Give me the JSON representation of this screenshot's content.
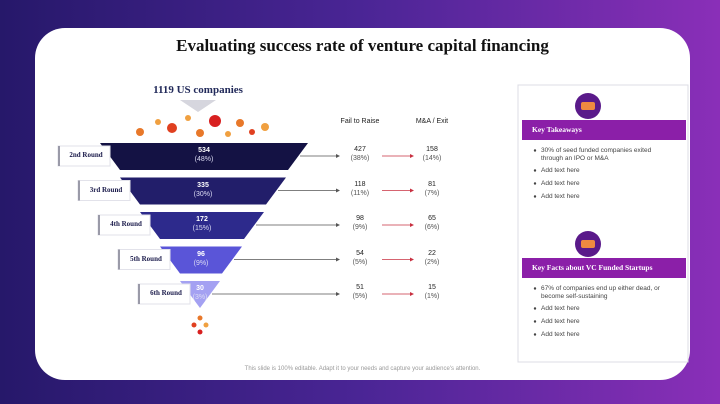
{
  "title": "Evaluating success rate of venture capital financing",
  "top_label": "1119 US companies",
  "columns": [
    "Fail to Raise",
    "M&A / Exit"
  ],
  "rounds": [
    {
      "label": "2nd Round",
      "count": "534",
      "count_pct": "(48%)",
      "fail": "427",
      "fail_pct": "(38%)",
      "exit": "158",
      "exit_pct": "(14%)"
    },
    {
      "label": "3rd Round",
      "count": "335",
      "count_pct": "(30%)",
      "fail": "118",
      "fail_pct": "(11%)",
      "exit": "81",
      "exit_pct": "(7%)"
    },
    {
      "label": "4th Round",
      "count": "172",
      "count_pct": "(15%)",
      "fail": "98",
      "fail_pct": "(9%)",
      "exit": "65",
      "exit_pct": "(6%)"
    },
    {
      "label": "5th Round",
      "count": "96",
      "count_pct": "(9%)",
      "fail": "54",
      "fail_pct": "(5%)",
      "exit": "22",
      "exit_pct": "(2%)"
    },
    {
      "label": "6th Round",
      "count": "30",
      "count_pct": "(3%)",
      "fail": "51",
      "fail_pct": "(5%)",
      "exit": "15",
      "exit_pct": "(1%)"
    }
  ],
  "panels": [
    {
      "heading": "Key Takeaways",
      "items": [
        "30% of seed funded companies exited through an IPO or M&A",
        "Add text here",
        "Add text here",
        "Add text here"
      ]
    },
    {
      "heading": "Key Facts about VC Funded Startups",
      "items": [
        "67% of companies end up either dead, or become self-sustaining",
        "Add text here",
        "Add text here",
        "Add text here"
      ]
    }
  ],
  "footer": "This slide is 100% editable. Adapt it to your needs and capture your audience's attention."
}
